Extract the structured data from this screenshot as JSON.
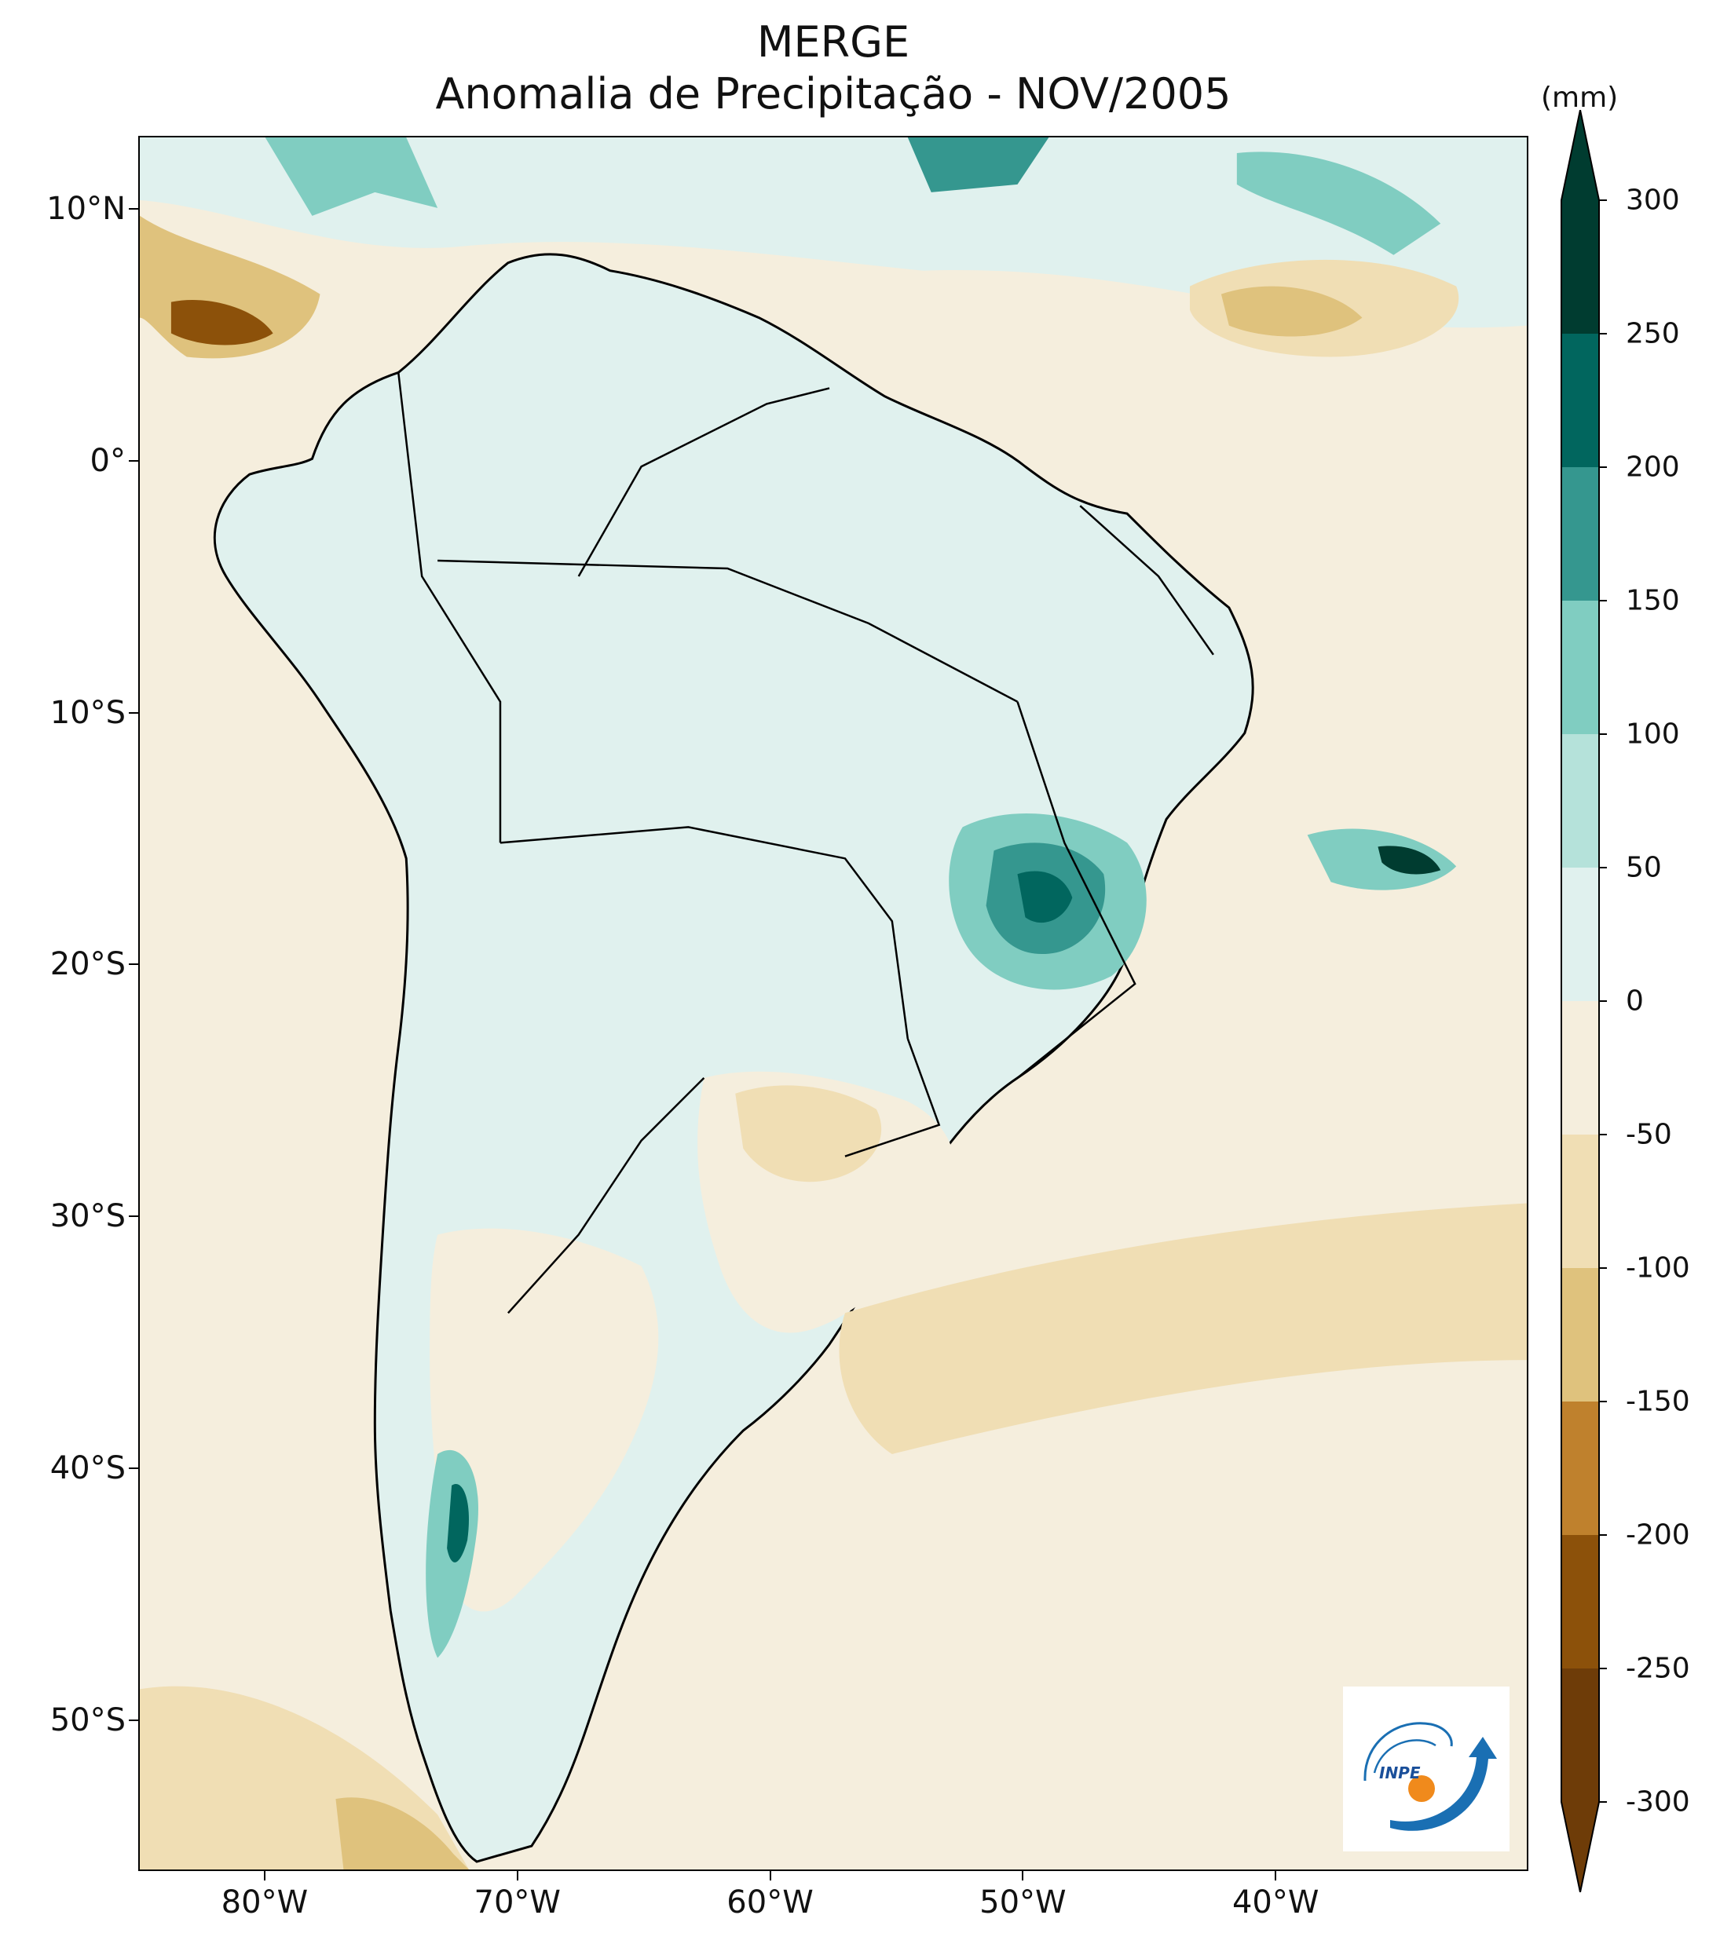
{
  "title": {
    "line1": "MERGE",
    "line2": "Anomalia de Precipitação - NOV/2005"
  },
  "map": {
    "lat_labels": [
      "10°N",
      "0°",
      "10°S",
      "20°S",
      "30°S",
      "40°S",
      "50°S"
    ],
    "lon_labels": [
      "80°W",
      "70°W",
      "60°W",
      "50°W",
      "40°W"
    ],
    "lat_values": [
      10,
      0,
      -10,
      -20,
      -30,
      -40,
      -50
    ],
    "lon_values": [
      -80,
      -70,
      -60,
      -50,
      -40
    ],
    "extent": {
      "lon_min": -85,
      "lon_max": -30,
      "lat_min": -56,
      "lat_max": 12.9
    },
    "dominant_anomaly": "positive over central Brazil (Goiás / Minas Gerais), negative over southern Brazil and adjacent Atlantic"
  },
  "colorbar": {
    "unit": "(mm)",
    "tick_labels": [
      "300",
      "250",
      "200",
      "150",
      "100",
      "50",
      "0",
      "-50",
      "-100",
      "-150",
      "-200",
      "-250",
      "-300"
    ],
    "levels": [
      300,
      250,
      200,
      150,
      100,
      50,
      0,
      -50,
      -100,
      -150,
      -200,
      -250,
      -300
    ],
    "colors": [
      "#003c30",
      "#01665e",
      "#35978f",
      "#80cdc1",
      "#b5e2da",
      "#e0f1ee",
      "#f5eedd",
      "#f0deb4",
      "#dfc27d",
      "#bf812d",
      "#8c510a",
      "#6e3c08"
    ],
    "extend": "both"
  },
  "logo": {
    "text": "INPE"
  }
}
